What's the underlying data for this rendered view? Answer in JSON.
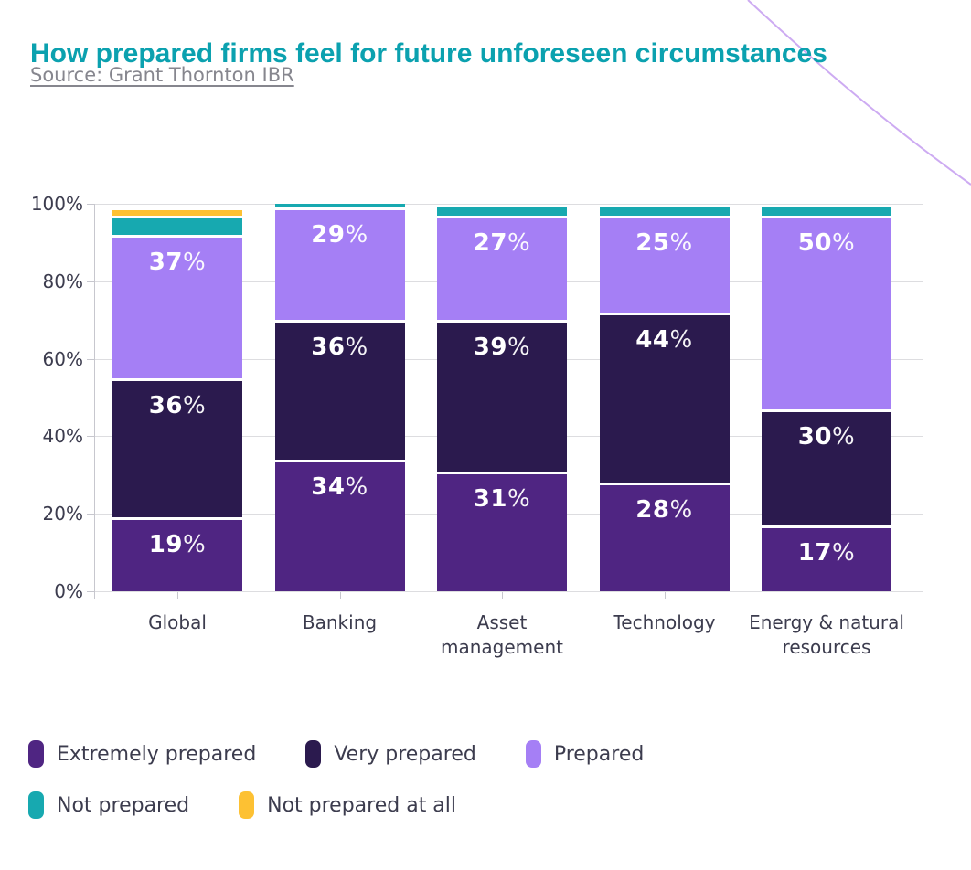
{
  "header": {
    "title": "How prepared firms feel for future unforeseen circumstances",
    "source": "Source: Grant Thornton IBR"
  },
  "colors": {
    "title_accent": "#0BA1AF",
    "source_text": "#86868E",
    "axis_text": "#3C3C4E",
    "gridline": "#DDDDE0",
    "decorative_line": "#CDABF2"
  },
  "chart_data": {
    "type": "bar",
    "stacked": true,
    "title": "How prepared firms feel for future unforeseen circumstances",
    "source": "Source: Grant Thornton IBR",
    "categories": [
      "Global",
      "Banking",
      "Asset\nmanagement",
      "Technology",
      "Energy & natural\nresources"
    ],
    "series": [
      {
        "name": "Extremely prepared",
        "color": "#4F2582",
        "values": [
          19,
          34,
          31,
          28,
          17
        ],
        "labeled": true
      },
      {
        "name": "Very prepared",
        "color": "#2B1A4E",
        "values": [
          36,
          36,
          39,
          44,
          30
        ],
        "labeled": true
      },
      {
        "name": "Prepared",
        "color": "#A57FF5",
        "values": [
          37,
          29,
          27,
          25,
          50
        ],
        "labeled": true
      },
      {
        "name": "Not prepared",
        "color": "#17A9B0",
        "values": [
          5,
          1,
          3,
          3,
          3
        ],
        "labeled": false
      },
      {
        "name": "Not prepared at all",
        "color": "#FDC133",
        "values": [
          2,
          0,
          0,
          0,
          0
        ],
        "labeled": false
      }
    ],
    "value_suffix": "%",
    "y_ticks": [
      "0%",
      "20%",
      "40%",
      "60%",
      "80%",
      "100%"
    ],
    "ylim": [
      0,
      100
    ],
    "grid": true,
    "legend_position": "bottom",
    "legend_rows": [
      [
        0,
        1,
        2
      ],
      [
        3,
        4
      ]
    ]
  }
}
